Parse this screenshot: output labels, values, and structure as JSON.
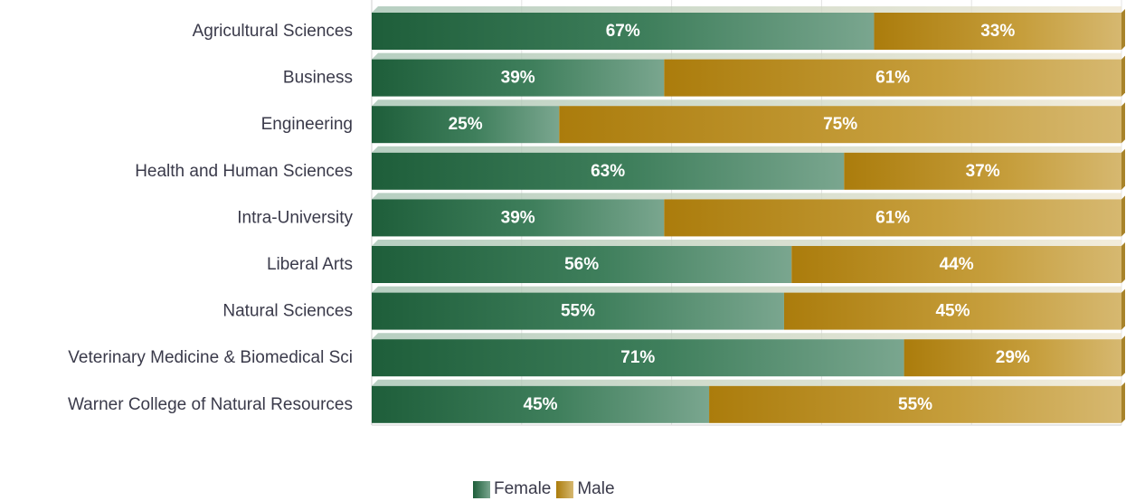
{
  "chart_data": {
    "type": "bar",
    "orientation": "horizontal",
    "stacked": true,
    "percent_stacked": true,
    "categories": [
      "Agricultural Sciences",
      "Business",
      "Engineering",
      "Health and Human Sciences",
      "Intra-University",
      "Liberal Arts",
      "Natural Sciences",
      "Veterinary Medicine & Biomedical Sci",
      "Warner College of Natural Resources"
    ],
    "series": [
      {
        "name": "Female",
        "values": [
          67,
          39,
          25,
          63,
          39,
          56,
          55,
          71,
          45
        ],
        "color": "#1e5e3a"
      },
      {
        "name": "Male",
        "values": [
          33,
          61,
          75,
          37,
          61,
          44,
          45,
          29,
          55
        ],
        "color": "#b07f10"
      }
    ],
    "value_suffix": "%",
    "xlim": [
      0,
      100
    ],
    "grid": true,
    "legend_position": "bottom-center"
  }
}
